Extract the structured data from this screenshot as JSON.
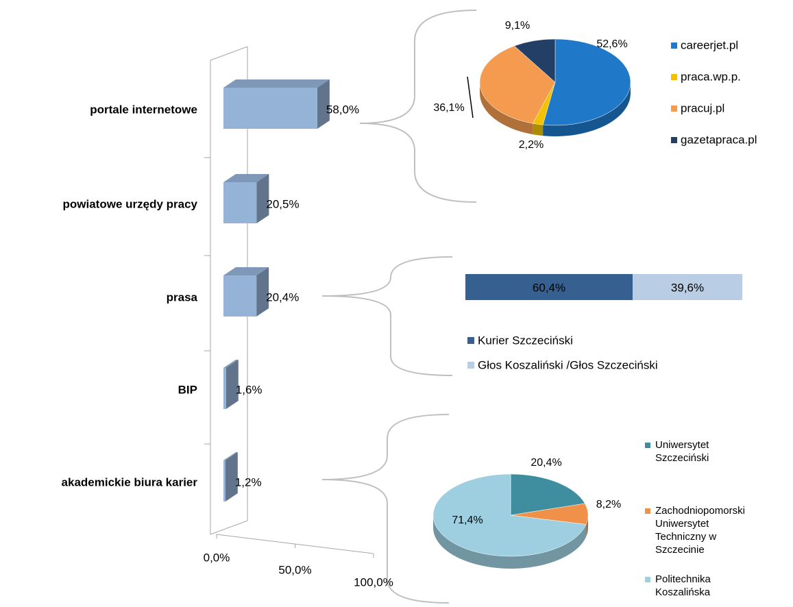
{
  "chart_data": [
    {
      "type": "bar",
      "orientation": "horizontal",
      "categories": [
        "portale internetowe",
        "powiatowe urzędy pracy",
        "prasa",
        "BIP",
        "akademickie biura karier"
      ],
      "values": [
        58.0,
        20.5,
        20.4,
        1.6,
        1.2
      ],
      "value_labels": [
        "58,0%",
        "20,5%",
        "20,4%",
        "1,6%",
        "1,2%"
      ],
      "color": "#95b3d7",
      "xlim": [
        0,
        100
      ],
      "xticks": [
        {
          "value": 0,
          "label": "0,0%"
        },
        {
          "value": 50,
          "label": "50,0%"
        },
        {
          "value": 100,
          "label": "100,0%"
        }
      ]
    },
    {
      "type": "pie",
      "categories": [
        "careerjet.pl",
        "praca.wp.p.",
        "pracuj.pl",
        "gazetapraca.pl"
      ],
      "values": [
        52.6,
        2.2,
        36.1,
        9.1
      ],
      "value_labels": [
        "52,6%",
        "2,2%",
        "36,1%",
        "9,1%"
      ],
      "colors": [
        "#1f78c8",
        "#f2c200",
        "#f59b4f",
        "#243f66"
      ]
    },
    {
      "type": "stacked_bar",
      "xlim": [
        0,
        100
      ],
      "series": [
        {
          "name": "Kurier Szczeciński",
          "color": "#35608f",
          "values": [
            60.4
          ],
          "value_labels": [
            "60,4%"
          ]
        },
        {
          "name": "Głos Koszaliński /Głos Szczeciński",
          "color": "#b9cde5",
          "values": [
            39.6
          ],
          "value_labels": [
            "39,6%"
          ]
        }
      ]
    },
    {
      "type": "pie",
      "categories": [
        "Uniwersytet Szczeciński",
        "Zachodniopomorski Uniwersytet Techniczny w Szczecinie",
        "Politechnika Koszalińska"
      ],
      "values": [
        20.4,
        8.2,
        71.4
      ],
      "value_labels": [
        "20,4%",
        "8,2%",
        "71,4%"
      ],
      "colors": [
        "#3e8ea0",
        "#f0914a",
        "#9dcfe0"
      ]
    }
  ]
}
